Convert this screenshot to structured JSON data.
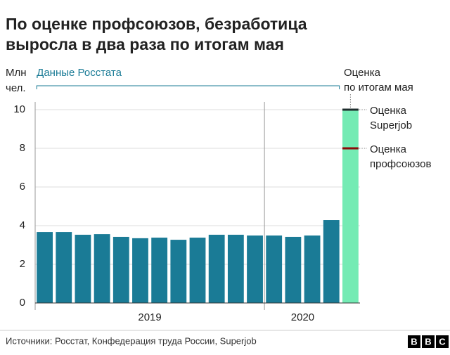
{
  "chart_data": {
    "type": "bar",
    "title": [
      "По оценке профсоюзов, безработица",
      "выросла в два раза по итогам мая"
    ],
    "y_label": [
      "Млн",
      "чел."
    ],
    "categories": [
      null,
      null,
      null,
      null,
      null,
      null,
      null,
      null,
      null,
      null,
      null,
      null,
      null,
      null,
      null,
      null,
      null
    ],
    "x_groups": [
      {
        "label": "2019",
        "count": 12
      },
      {
        "label": "2020",
        "count": 4
      }
    ],
    "series": [
      {
        "name": "Данные Росстата",
        "color": "#1a7b96",
        "values": [
          3.67,
          3.67,
          3.53,
          3.56,
          3.42,
          3.35,
          3.38,
          3.27,
          3.38,
          3.53,
          3.53,
          3.49,
          3.49,
          3.42,
          3.49,
          4.29,
          null
        ]
      },
      {
        "name": [
          "Оценка",
          "по итогам мая"
        ],
        "color": "#74ebb4",
        "values": [
          null,
          null,
          null,
          null,
          null,
          null,
          null,
          null,
          null,
          null,
          null,
          null,
          null,
          null,
          null,
          null,
          10
        ]
      }
    ],
    "estimates": [
      {
        "label": [
          "Оценка",
          "Superjob"
        ],
        "value": 10,
        "color": "#1e2d2d"
      },
      {
        "label": [
          "Оценка",
          "профсоюзов"
        ],
        "value": 8,
        "color": "#8b0a0a"
      }
    ],
    "ylim": [
      0,
      10
    ],
    "yticks": [
      0,
      2,
      4,
      6,
      8,
      10
    ],
    "grid": true,
    "source": "Источники: Росстат, Конфедерация труда России, Superjob",
    "logo": [
      "B",
      "B",
      "C"
    ]
  }
}
